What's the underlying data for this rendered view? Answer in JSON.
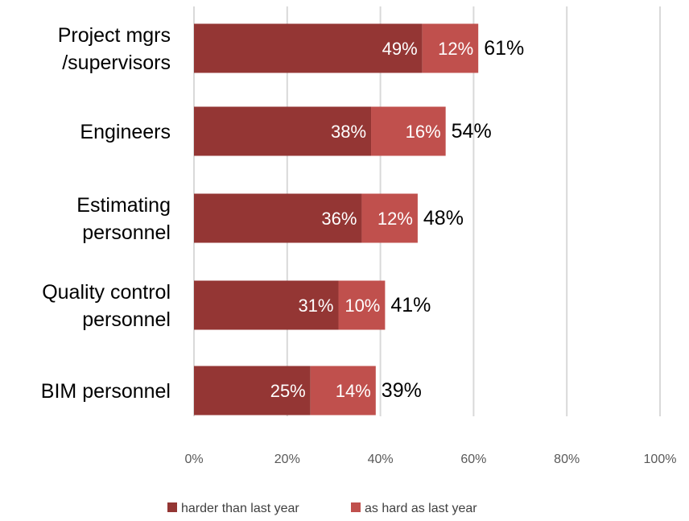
{
  "chart_data": {
    "type": "bar",
    "orientation": "horizontal",
    "stacked": true,
    "categories": [
      [
        "Project mgrs",
        "/supervisors"
      ],
      [
        "Engineers"
      ],
      [
        "Estimating",
        "personnel"
      ],
      [
        "Quality control",
        "personnel"
      ],
      [
        "BIM personnel"
      ]
    ],
    "series": [
      {
        "name": "harder than last year",
        "values": [
          49,
          38,
          36,
          31,
          25
        ],
        "labels": [
          "49%",
          "38%",
          "36%",
          "31%",
          "25%"
        ],
        "color": "#943634"
      },
      {
        "name": "as hard as last year",
        "values": [
          12,
          16,
          12,
          10,
          14
        ],
        "labels": [
          "12%",
          "16%",
          "12%",
          "10%",
          "14%"
        ],
        "color": "#c0504d"
      }
    ],
    "totals": [
      61,
      54,
      48,
      41,
      39
    ],
    "total_labels": [
      "61%",
      "54%",
      "48%",
      "41%",
      "39%"
    ],
    "xlim": [
      0,
      100
    ],
    "x_ticks": [
      0,
      20,
      40,
      60,
      80,
      100
    ],
    "x_tick_labels": [
      "0%",
      "20%",
      "40%",
      "60%",
      "80%",
      "100%"
    ],
    "grid": true,
    "legend_position": "bottom",
    "colors": {
      "gridline": "#d9d9d9"
    }
  }
}
